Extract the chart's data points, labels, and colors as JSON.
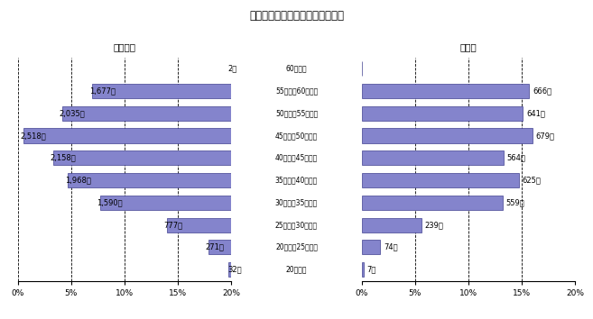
{
  "title": "職員の年齢階層別人数及び構成比",
  "left_title": "全給料表",
  "right_title": "行政職",
  "categories": [
    "60歳以上",
    "55歳以上60歳未満",
    "50歳以上55歳未満",
    "45歳以上50歳未満",
    "40歳以上45歳未満",
    "35歳以上40歳未満",
    "30歳以上35歳未満",
    "25歳以上30歳未満",
    "20歳以上25歳未満",
    "20歳未満"
  ],
  "left_values_pct": [
    0.05,
    13.0,
    15.8,
    19.5,
    16.7,
    15.3,
    12.3,
    6.0,
    2.1,
    0.25
  ],
  "right_values_pct": [
    0.0,
    15.7,
    15.1,
    16.0,
    13.3,
    14.7,
    13.2,
    5.6,
    1.74,
    0.165
  ],
  "left_labels": [
    "2人",
    "1,677人",
    "2,035人",
    "2,518人",
    "2,158人",
    "1,968人",
    "1,590人",
    "777人",
    "271人",
    "32人"
  ],
  "right_labels": [
    "",
    "666人",
    "641人",
    "679人",
    "564人",
    "625人",
    "559人",
    "239人",
    "74人",
    "7人"
  ],
  "bar_color": "#8484cc",
  "bar_edge_color": "#404090",
  "background_color": "#ffffff",
  "xlim": 20,
  "tick_positions": [
    0,
    5,
    10,
    15,
    20
  ],
  "tick_labels_left": [
    "20%",
    "15%",
    "10%",
    "5%",
    "0%"
  ],
  "tick_labels_right": [
    "0%",
    "5%",
    "10%",
    "15%",
    "20%"
  ]
}
